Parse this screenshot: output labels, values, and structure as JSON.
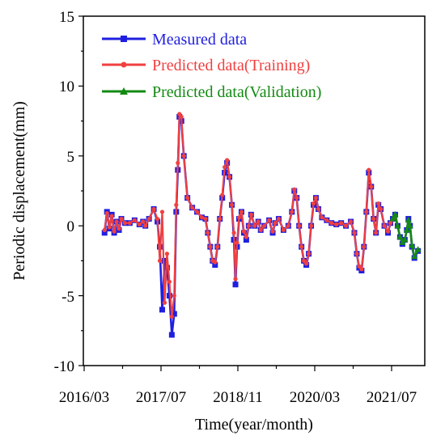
{
  "chart_data": {
    "type": "line",
    "title": "",
    "xlabel": "Time(year/month)",
    "ylabel": "Periodic displacement(mm)",
    "x_ticks": [
      "2016/03",
      "2017/07",
      "2018/11",
      "2020/03",
      "2021/07"
    ],
    "x_tick_months": [
      0,
      16,
      32,
      48,
      64
    ],
    "ylim": [
      -10,
      15
    ],
    "y_ticks": [
      -10,
      -5,
      0,
      5,
      10,
      15
    ],
    "grid": false,
    "legend_position": "top-left",
    "series": [
      {
        "name": "Measured data",
        "color": "#1f1fe0",
        "marker": "square",
        "points": [
          [
            "2016/07",
            -0.5
          ],
          [
            "2016/07",
            1.0
          ],
          [
            "2016/08",
            -0.2
          ],
          [
            "2016/08",
            0.8
          ],
          [
            "2016/09",
            -0.5
          ],
          [
            "2016/09",
            0.3
          ],
          [
            "2016/10",
            -0.3
          ],
          [
            "2016/10",
            0.5
          ],
          [
            "2016/11",
            0.2
          ],
          [
            "2016/12",
            0.2
          ],
          [
            "2017/01",
            0.4
          ],
          [
            "2017/02",
            0.1
          ],
          [
            "2017/03",
            0.3
          ],
          [
            "2017/03",
            0.0
          ],
          [
            "2017/04",
            0.5
          ],
          [
            "2017/05",
            1.2
          ],
          [
            "2017/06",
            0.3
          ],
          [
            "2017/06",
            -1.5
          ],
          [
            "2017/07",
            -6.0
          ],
          [
            "2017/07",
            -2.5
          ],
          [
            "2017/08",
            -3.0
          ],
          [
            "2017/08",
            -5.0
          ],
          [
            "2017/09",
            -7.8
          ],
          [
            "2017/09",
            -6.3
          ],
          [
            "2017/10",
            1.0
          ],
          [
            "2017/10",
            4.0
          ],
          [
            "2017/10",
            7.8
          ],
          [
            "2017/11",
            7.5
          ],
          [
            "2017/11",
            5.0
          ],
          [
            "2017/12",
            2.0
          ],
          [
            "2018/01",
            1.3
          ],
          [
            "2018/02",
            1.0
          ],
          [
            "2018/03",
            0.6
          ],
          [
            "2018/04",
            0.5
          ],
          [
            "2018/04",
            -0.5
          ],
          [
            "2018/05",
            -1.5
          ],
          [
            "2018/05",
            -2.5
          ],
          [
            "2018/06",
            -2.8
          ],
          [
            "2018/06",
            -1.5
          ],
          [
            "2018/07",
            0.5
          ],
          [
            "2018/07",
            2.0
          ],
          [
            "2018/08",
            3.8
          ],
          [
            "2018/08",
            4.5
          ],
          [
            "2018/09",
            3.5
          ],
          [
            "2018/09",
            1.5
          ],
          [
            "2018/10",
            -1.0
          ],
          [
            "2018/10",
            -4.2
          ],
          [
            "2018/10",
            -1.5
          ],
          [
            "2018/11",
            0.5
          ],
          [
            "2018/11",
            1.0
          ],
          [
            "2018/12",
            -0.5
          ],
          [
            "2018/12",
            -1.0
          ],
          [
            "2019/01",
            0.0
          ],
          [
            "2019/01",
            0.8
          ],
          [
            "2019/02",
            0.0
          ],
          [
            "2019/03",
            0.3
          ],
          [
            "2019/03",
            -0.3
          ],
          [
            "2019/04",
            0.0
          ],
          [
            "2019/05",
            0.4
          ],
          [
            "2019/06",
            -0.5
          ],
          [
            "2019/06",
            0.2
          ],
          [
            "2019/07",
            0.5
          ],
          [
            "2019/08",
            -0.3
          ],
          [
            "2019/09",
            0.0
          ],
          [
            "2019/10",
            1.0
          ],
          [
            "2019/10",
            2.5
          ],
          [
            "2019/11",
            2.0
          ],
          [
            "2019/11",
            0.0
          ],
          [
            "2019/12",
            -1.5
          ],
          [
            "2019/12",
            -2.5
          ],
          [
            "2020/01",
            -2.8
          ],
          [
            "2020/01",
            -2.0
          ],
          [
            "2020/02",
            0.0
          ],
          [
            "2020/02",
            1.5
          ],
          [
            "2020/03",
            2.0
          ],
          [
            "2020/03",
            1.2
          ],
          [
            "2020/04",
            0.6
          ],
          [
            "2020/05",
            0.4
          ],
          [
            "2020/06",
            0.2
          ],
          [
            "2020/07",
            0.1
          ],
          [
            "2020/08",
            0.2
          ],
          [
            "2020/09",
            0.0
          ],
          [
            "2020/10",
            0.3
          ],
          [
            "2020/11",
            -0.5
          ],
          [
            "2020/11",
            -2.0
          ],
          [
            "2020/12",
            -3.0
          ],
          [
            "2020/12",
            -3.2
          ],
          [
            "2021/01",
            -1.5
          ],
          [
            "2021/01",
            1.0
          ],
          [
            "2021/02",
            3.8
          ],
          [
            "2021/02",
            2.8
          ],
          [
            "2021/03",
            0.5
          ],
          [
            "2021/03",
            -0.5
          ],
          [
            "2021/04",
            1.5
          ],
          [
            "2021/04",
            1.2
          ],
          [
            "2021/05",
            0.0
          ],
          [
            "2021/06",
            -0.5
          ],
          [
            "2021/06",
            0.2
          ],
          [
            "2021/07",
            0.5
          ],
          [
            "2021/07",
            0.8
          ],
          [
            "2021/08",
            0.0
          ],
          [
            "2021/08",
            -0.8
          ],
          [
            "2021/09",
            -1.3
          ],
          [
            "2021/09",
            -1.0
          ],
          [
            "2021/10",
            -0.3
          ],
          [
            "2021/10",
            0.5
          ],
          [
            "2021/10",
            0.0
          ],
          [
            "2021/11",
            -1.5
          ],
          [
            "2021/11",
            -2.3
          ],
          [
            "2021/12",
            -1.8
          ]
        ]
      },
      {
        "name": "Predicted data(Training)",
        "color": "#f04040",
        "marker": "circle",
        "points": [
          [
            "2016/07",
            -0.3
          ],
          [
            "2016/07",
            0.9
          ],
          [
            "2016/08",
            -0.1
          ],
          [
            "2016/08",
            0.7
          ],
          [
            "2016/09",
            -0.4
          ],
          [
            "2016/09",
            0.3
          ],
          [
            "2016/10",
            -0.2
          ],
          [
            "2016/10",
            0.5
          ],
          [
            "2016/11",
            0.2
          ],
          [
            "2016/12",
            0.2
          ],
          [
            "2017/01",
            0.4
          ],
          [
            "2017/02",
            0.1
          ],
          [
            "2017/03",
            0.3
          ],
          [
            "2017/03",
            0.0
          ],
          [
            "2017/04",
            0.5
          ],
          [
            "2017/05",
            1.2
          ],
          [
            "2017/06",
            0.5
          ],
          [
            "2017/06",
            -2.5
          ],
          [
            "2017/07",
            1.0
          ],
          [
            "2017/07",
            -5.5
          ],
          [
            "2017/08",
            -2.0
          ],
          [
            "2017/08",
            -4.0
          ],
          [
            "2017/09",
            -6.5
          ],
          [
            "2017/09",
            -5.0
          ],
          [
            "2017/10",
            1.5
          ],
          [
            "2017/10",
            4.5
          ],
          [
            "2017/10",
            8.0
          ],
          [
            "2017/11",
            7.8
          ],
          [
            "2017/11",
            5.0
          ],
          [
            "2017/12",
            2.0
          ],
          [
            "2018/01",
            1.3
          ],
          [
            "2018/02",
            1.0
          ],
          [
            "2018/03",
            0.6
          ],
          [
            "2018/04",
            0.5
          ],
          [
            "2018/04",
            -0.5
          ],
          [
            "2018/05",
            -1.5
          ],
          [
            "2018/05",
            -2.5
          ],
          [
            "2018/06",
            -2.6
          ],
          [
            "2018/06",
            -1.5
          ],
          [
            "2018/07",
            0.5
          ],
          [
            "2018/07",
            2.2
          ],
          [
            "2018/08",
            4.2
          ],
          [
            "2018/08",
            4.7
          ],
          [
            "2018/09",
            3.5
          ],
          [
            "2018/09",
            1.5
          ],
          [
            "2018/10",
            -0.5
          ],
          [
            "2018/10",
            -3.8
          ],
          [
            "2018/10",
            -1.2
          ],
          [
            "2018/11",
            0.6
          ],
          [
            "2018/11",
            1.0
          ],
          [
            "2018/12",
            -0.4
          ],
          [
            "2018/12",
            -0.8
          ],
          [
            "2019/01",
            0.0
          ],
          [
            "2019/01",
            0.8
          ],
          [
            "2019/02",
            0.0
          ],
          [
            "2019/03",
            0.3
          ],
          [
            "2019/03",
            -0.3
          ],
          [
            "2019/04",
            0.0
          ],
          [
            "2019/05",
            0.4
          ],
          [
            "2019/06",
            -0.4
          ],
          [
            "2019/06",
            0.2
          ],
          [
            "2019/07",
            0.5
          ],
          [
            "2019/08",
            -0.3
          ],
          [
            "2019/09",
            0.0
          ],
          [
            "2019/10",
            1.0
          ],
          [
            "2019/10",
            2.6
          ],
          [
            "2019/11",
            2.0
          ],
          [
            "2019/11",
            0.0
          ],
          [
            "2019/12",
            -1.5
          ],
          [
            "2019/12",
            -2.5
          ],
          [
            "2020/01",
            -2.7
          ],
          [
            "2020/01",
            -2.0
          ],
          [
            "2020/02",
            0.0
          ],
          [
            "2020/02",
            1.6
          ],
          [
            "2020/03",
            2.0
          ],
          [
            "2020/03",
            1.2
          ],
          [
            "2020/04",
            0.6
          ],
          [
            "2020/05",
            0.4
          ],
          [
            "2020/06",
            0.2
          ],
          [
            "2020/07",
            0.1
          ],
          [
            "2020/08",
            0.2
          ],
          [
            "2020/09",
            0.0
          ],
          [
            "2020/10",
            0.3
          ],
          [
            "2020/11",
            -0.5
          ],
          [
            "2020/11",
            -2.0
          ],
          [
            "2020/12",
            -2.9
          ],
          [
            "2020/12",
            -3.1
          ],
          [
            "2021/01",
            -1.5
          ],
          [
            "2021/01",
            1.0
          ],
          [
            "2021/02",
            4.0
          ],
          [
            "2021/02",
            2.8
          ],
          [
            "2021/03",
            0.5
          ],
          [
            "2021/03",
            -0.5
          ],
          [
            "2021/04",
            1.6
          ],
          [
            "2021/04",
            1.2
          ],
          [
            "2021/05",
            0.0
          ],
          [
            "2021/06",
            -0.4
          ],
          [
            "2021/06",
            0.2
          ],
          [
            "2021/07",
            0.5
          ]
        ]
      },
      {
        "name": "Predicted data(Validation)",
        "color": "#138a13",
        "marker": "triangle",
        "points": [
          [
            "2021/07",
            0.5
          ],
          [
            "2021/07",
            0.8
          ],
          [
            "2021/08",
            0.0
          ],
          [
            "2021/08",
            -0.8
          ],
          [
            "2021/09",
            -1.2
          ],
          [
            "2021/09",
            -1.0
          ],
          [
            "2021/10",
            -0.3
          ],
          [
            "2021/10",
            0.4
          ],
          [
            "2021/10",
            0.0
          ],
          [
            "2021/11",
            -1.4
          ],
          [
            "2021/11",
            -2.2
          ],
          [
            "2021/12",
            -1.7
          ]
        ]
      }
    ]
  }
}
